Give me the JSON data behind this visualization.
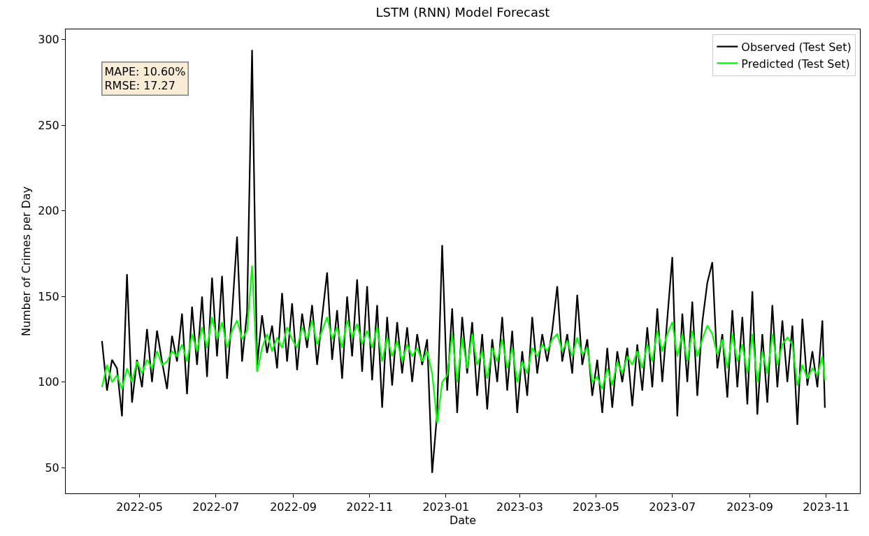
{
  "chart_data": {
    "type": "line",
    "title": "LSTM (RNN) Model Forecast",
    "xlabel": "Date",
    "ylabel": "Number of Crimes per Day",
    "annotations": [
      "MAPE: 10.60%\nRMSE: 17.27"
    ],
    "x": [
      "2022-04-01",
      "2022-04-05",
      "2022-04-09",
      "2022-04-13",
      "2022-04-17",
      "2022-04-21",
      "2022-04-25",
      "2022-04-29",
      "2022-05-03",
      "2022-05-07",
      "2022-05-11",
      "2022-05-15",
      "2022-05-19",
      "2022-05-23",
      "2022-05-27",
      "2022-05-31",
      "2022-06-04",
      "2022-06-08",
      "2022-06-12",
      "2022-06-16",
      "2022-06-20",
      "2022-06-24",
      "2022-06-28",
      "2022-07-02",
      "2022-07-06",
      "2022-07-10",
      "2022-07-14",
      "2022-07-18",
      "2022-07-22",
      "2022-07-26",
      "2022-07-30",
      "2022-08-03",
      "2022-08-07",
      "2022-08-11",
      "2022-08-15",
      "2022-08-19",
      "2022-08-23",
      "2022-08-27",
      "2022-08-31",
      "2022-09-04",
      "2022-09-08",
      "2022-09-12",
      "2022-09-16",
      "2022-09-20",
      "2022-09-24",
      "2022-09-28",
      "2022-10-02",
      "2022-10-06",
      "2022-10-10",
      "2022-10-14",
      "2022-10-18",
      "2022-10-22",
      "2022-10-26",
      "2022-10-30",
      "2022-11-03",
      "2022-11-07",
      "2022-11-11",
      "2022-11-15",
      "2022-11-19",
      "2022-11-23",
      "2022-11-27",
      "2022-12-01",
      "2022-12-05",
      "2022-12-09",
      "2022-12-13",
      "2022-12-17",
      "2022-12-21",
      "2022-12-25",
      "2022-12-29",
      "2023-01-02",
      "2023-01-06",
      "2023-01-10",
      "2023-01-14",
      "2023-01-18",
      "2023-01-22",
      "2023-01-26",
      "2023-01-30",
      "2023-02-03",
      "2023-02-07",
      "2023-02-11",
      "2023-02-15",
      "2023-02-19",
      "2023-02-23",
      "2023-02-27",
      "2023-03-03",
      "2023-03-07",
      "2023-03-11",
      "2023-03-15",
      "2023-03-19",
      "2023-03-23",
      "2023-03-27",
      "2023-03-31",
      "2023-04-04",
      "2023-04-08",
      "2023-04-12",
      "2023-04-16",
      "2023-04-20",
      "2023-04-24",
      "2023-04-28",
      "2023-05-02",
      "2023-05-06",
      "2023-05-10",
      "2023-05-14",
      "2023-05-18",
      "2023-05-22",
      "2023-05-26",
      "2023-05-30",
      "2023-06-03",
      "2023-06-07",
      "2023-06-11",
      "2023-06-15",
      "2023-06-19",
      "2023-06-23",
      "2023-06-27",
      "2023-07-01",
      "2023-07-05",
      "2023-07-09",
      "2023-07-13",
      "2023-07-17",
      "2023-07-21",
      "2023-07-25",
      "2023-07-29",
      "2023-08-02",
      "2023-08-06",
      "2023-08-10",
      "2023-08-14",
      "2023-08-18",
      "2023-08-22",
      "2023-08-26",
      "2023-08-30",
      "2023-09-03",
      "2023-09-07",
      "2023-09-11",
      "2023-09-15",
      "2023-09-19",
      "2023-09-23",
      "2023-09-27",
      "2023-10-01",
      "2023-10-05",
      "2023-10-09",
      "2023-10-13",
      "2023-10-17",
      "2023-10-21",
      "2023-10-25",
      "2023-10-29",
      "2023-10-31"
    ],
    "series": [
      {
        "name": "Observed (Test Set)",
        "color": "#000000",
        "values": [
          124,
          95,
          113,
          108,
          80,
          163,
          88,
          113,
          97,
          131,
          100,
          130,
          112,
          96,
          127,
          112,
          140,
          93,
          144,
          110,
          150,
          103,
          161,
          115,
          162,
          102,
          140,
          185,
          112,
          141,
          294,
          110,
          139,
          117,
          133,
          108,
          152,
          112,
          146,
          107,
          140,
          120,
          145,
          110,
          138,
          164,
          113,
          142,
          102,
          150,
          115,
          160,
          106,
          156,
          101,
          145,
          85,
          138,
          98,
          135,
          105,
          132,
          100,
          128,
          110,
          125,
          47,
          82,
          180,
          95,
          143,
          82,
          138,
          105,
          135,
          92,
          128,
          84,
          125,
          100,
          138,
          95,
          130,
          82,
          118,
          92,
          138,
          105,
          128,
          112,
          130,
          156,
          112,
          128,
          105,
          151,
          110,
          125,
          92,
          113,
          82,
          120,
          85,
          118,
          100,
          120,
          86,
          122,
          95,
          132,
          97,
          143,
          100,
          137,
          173,
          80,
          140,
          100,
          147,
          92,
          135,
          158,
          170,
          108,
          128,
          91,
          142,
          97,
          138,
          87,
          153,
          81,
          128,
          88,
          145,
          97,
          136,
          100,
          133,
          75,
          137,
          98,
          118,
          97,
          136,
          85
        ]
      },
      {
        "name": "Predicted (Test Set)",
        "color": "#00ff00",
        "values": [
          97,
          110,
          100,
          104,
          96,
          108,
          100,
          112,
          105,
          113,
          108,
          118,
          110,
          112,
          118,
          115,
          122,
          112,
          128,
          118,
          132,
          120,
          138,
          125,
          135,
          120,
          130,
          136,
          125,
          130,
          168,
          106,
          120,
          128,
          118,
          126,
          120,
          132,
          125,
          120,
          132,
          125,
          136,
          122,
          130,
          138,
          125,
          132,
          120,
          136,
          126,
          134,
          122,
          130,
          120,
          132,
          112,
          126,
          115,
          124,
          112,
          122,
          115,
          120,
          112,
          118,
          105,
          76,
          100,
          104,
          128,
          100,
          126,
          108,
          128,
          110,
          118,
          102,
          120,
          112,
          125,
          108,
          120,
          100,
          112,
          105,
          120,
          115,
          122,
          118,
          125,
          128,
          118,
          124,
          115,
          126,
          116,
          120,
          100,
          103,
          96,
          108,
          98,
          112,
          105,
          115,
          110,
          118,
          108,
          122,
          112,
          130,
          118,
          128,
          135,
          115,
          128,
          112,
          130,
          115,
          125,
          133,
          128,
          116,
          125,
          108,
          128,
          112,
          122,
          105,
          128,
          100,
          118,
          105,
          128,
          110,
          122,
          126,
          122,
          98,
          110,
          102,
          108,
          104,
          115,
          101
        ]
      }
    ],
    "xlim": [
      "2022-03-03",
      "2023-11-28"
    ],
    "xticks": [
      "2022-05",
      "2022-07",
      "2022-09",
      "2022-11",
      "2023-01",
      "2023-03",
      "2023-05",
      "2023-07",
      "2023-09",
      "2023-11"
    ],
    "ylim": [
      35,
      306
    ],
    "yticks": [
      50,
      100,
      150,
      200,
      250,
      300
    ],
    "legend": "top right",
    "grid": false
  }
}
